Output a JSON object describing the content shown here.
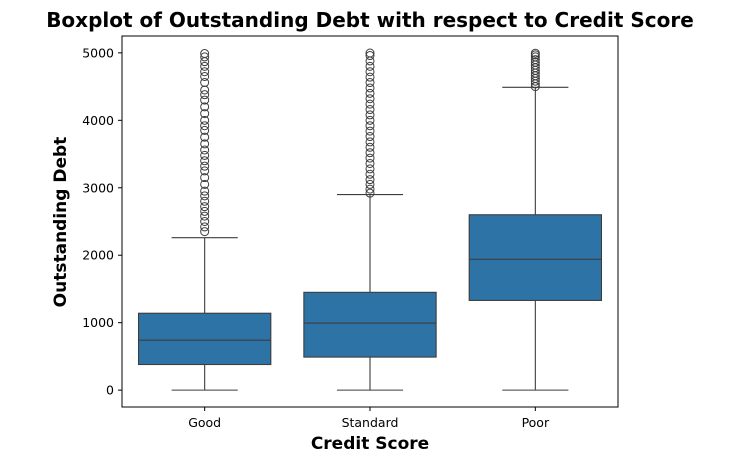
{
  "chart_data": {
    "type": "boxplot",
    "title": "Boxplot of Outstanding Debt with respect to Credit Score",
    "xlabel": "Credit Score",
    "ylabel": "Outstanding Debt",
    "ylim": [
      -250,
      5250
    ],
    "yticks": [
      0,
      1000,
      2000,
      3000,
      4000,
      5000
    ],
    "grid": false,
    "box_color": "#2e73a6",
    "line_color": "#3d3d3d",
    "categories": [
      "Good",
      "Standard",
      "Poor"
    ],
    "boxes": [
      {
        "name": "Good",
        "whisker_low": 0,
        "q1": 380,
        "median": 740,
        "q3": 1140,
        "whisker_high": 2260,
        "outliers": [
          2350,
          2420,
          2500,
          2580,
          2650,
          2720,
          2800,
          2880,
          2950,
          3050,
          3150,
          3250,
          3320,
          3400,
          3480,
          3560,
          3650,
          3750,
          3850,
          3920,
          4000,
          4100,
          4200,
          4300,
          4380,
          4450,
          4560,
          4650,
          4720,
          4800,
          4870,
          4940,
          4990
        ]
      },
      {
        "name": "Standard",
        "whisker_low": 0,
        "q1": 490,
        "median": 995,
        "q3": 1450,
        "whisker_high": 2900,
        "outliers": [
          2920,
          2980,
          3050,
          3120,
          3200,
          3280,
          3360,
          3440,
          3520,
          3600,
          3680,
          3760,
          3840,
          3920,
          4000,
          4080,
          4160,
          4240,
          4320,
          4400,
          4480,
          4560,
          4640,
          4720,
          4800,
          4880,
          4960,
          4998
        ]
      },
      {
        "name": "Poor",
        "whisker_low": 0,
        "q1": 1330,
        "median": 1940,
        "q3": 2600,
        "whisker_high": 4490,
        "outliers": [
          4500,
          4540,
          4580,
          4620,
          4660,
          4700,
          4740,
          4780,
          4820,
          4860,
          4900,
          4940,
          4970,
          4995
        ]
      }
    ]
  }
}
